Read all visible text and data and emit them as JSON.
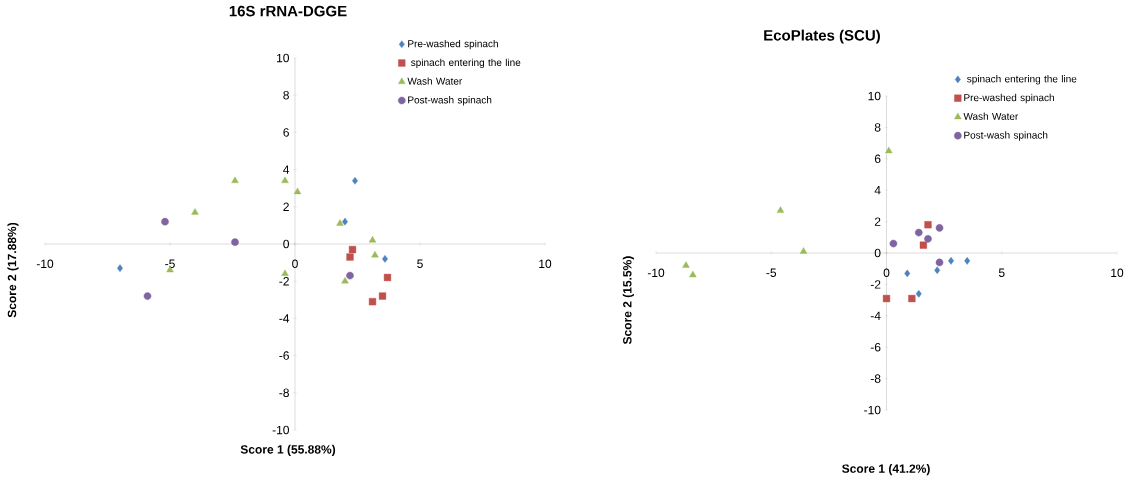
{
  "chart_data": [
    {
      "type": "scatter",
      "title": "16S rRNA-DGGE",
      "xlabel": "Score 1 (55.88%)",
      "ylabel": "Score 2 (17.88%)",
      "xlim": [
        -10,
        10
      ],
      "ylim": [
        -10,
        10
      ],
      "xticks": [
        -10,
        -5,
        0,
        5,
        10
      ],
      "yticks": [
        -10,
        -8,
        -6,
        -4,
        -2,
        0,
        2,
        4,
        6,
        8,
        10
      ],
      "legend": "top right",
      "series": [
        {
          "name": "Pre-washed spinach",
          "color": "#4f81bd",
          "marker": "diamond",
          "x": [
            -7.0,
            2.4,
            2.0,
            3.6
          ],
          "values": [
            -1.3,
            3.4,
            1.2,
            -0.8
          ]
        },
        {
          "name": " spinach entering the line",
          "color": "#c0504d",
          "marker": "square",
          "x": [
            2.3,
            2.2,
            3.7,
            3.1,
            3.5
          ],
          "values": [
            -0.3,
            -0.7,
            -1.8,
            -3.1,
            -2.8
          ]
        },
        {
          "name": "Wash Water",
          "color": "#9bbb59",
          "marker": "triangle",
          "x": [
            -2.4,
            -4.0,
            -0.4,
            0.1,
            1.8,
            3.1,
            3.2,
            -0.4,
            2.0,
            -5.0
          ],
          "values": [
            3.4,
            1.7,
            3.4,
            2.8,
            1.1,
            0.2,
            -0.6,
            -1.6,
            -2.0,
            -1.4
          ]
        },
        {
          "name": "Post-wash spinach",
          "color": "#8064a2",
          "marker": "circle",
          "x": [
            -5.2,
            -2.4,
            2.2,
            -5.9
          ],
          "values": [
            1.2,
            0.1,
            -1.7,
            -2.8
          ]
        }
      ]
    },
    {
      "type": "scatter",
      "title": "EcoPlates (SCU)",
      "xlabel": "Score 1 (41.2%)",
      "ylabel": "Score 2 (15.5%)",
      "xlim": [
        -10,
        10
      ],
      "ylim": [
        -10,
        10
      ],
      "xticks": [
        -10,
        -5,
        0,
        5,
        10
      ],
      "yticks": [
        -10,
        -8,
        -6,
        -4,
        -2,
        0,
        2,
        4,
        6,
        8,
        10
      ],
      "legend": "top right",
      "series": [
        {
          "name": " spinach entering the line",
          "color": "#4f81bd",
          "marker": "diamond",
          "x": [
            0.9,
            1.4,
            2.8,
            3.5,
            2.2
          ],
          "values": [
            -1.3,
            -2.6,
            -0.5,
            -0.5,
            -1.1
          ]
        },
        {
          "name": "Pre-washed spinach",
          "color": "#c0504d",
          "marker": "square",
          "x": [
            0.0,
            1.1,
            1.8,
            1.6
          ],
          "values": [
            -2.9,
            -2.9,
            1.8,
            0.5
          ]
        },
        {
          "name": "Wash Water",
          "color": "#9bbb59",
          "marker": "triangle",
          "x": [
            -4.6,
            -3.6,
            -8.7,
            -8.4,
            0.1
          ],
          "values": [
            2.7,
            0.1,
            -0.8,
            -1.4,
            6.5
          ]
        },
        {
          "name": "Post-wash spinach",
          "color": "#8064a2",
          "marker": "circle",
          "x": [
            0.3,
            1.4,
            1.8,
            2.3,
            2.3
          ],
          "values": [
            0.6,
            1.3,
            0.9,
            1.6,
            -0.6
          ]
        }
      ]
    }
  ]
}
